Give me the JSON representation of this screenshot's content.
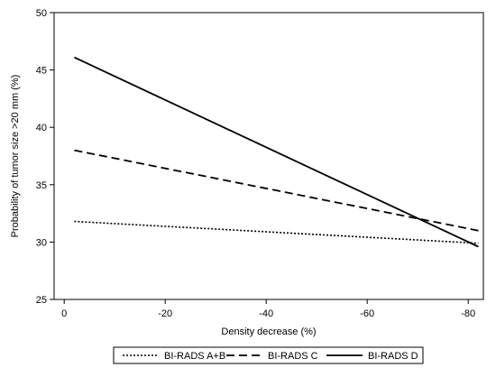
{
  "chart_data": {
    "type": "line",
    "xlabel": "Density decrease (%)",
    "ylabel": "Probability of tumor size >20 mm (%)",
    "xlim": [
      2,
      -83
    ],
    "ylim": [
      25,
      50
    ],
    "x_reversed": true,
    "xticks": [
      0,
      -20,
      -40,
      -60,
      -80
    ],
    "yticks": [
      25,
      30,
      35,
      40,
      45,
      50
    ],
    "xtick_labels": [
      "0",
      "-20",
      "-40",
      "-60",
      "-80"
    ],
    "ytick_labels": [
      "25",
      "30",
      "35",
      "40",
      "45",
      "50"
    ],
    "grid": false,
    "legend_position": "bottom",
    "series": [
      {
        "name": "BI-RADS A+B",
        "line_style": "dotted",
        "color": "#000000",
        "points": [
          [
            -2,
            31.8
          ],
          [
            -82,
            29.9
          ]
        ]
      },
      {
        "name": "BI-RADS C",
        "line_style": "dashed",
        "color": "#000000",
        "points": [
          [
            -2,
            38.0
          ],
          [
            -82,
            31.0
          ]
        ]
      },
      {
        "name": "BI-RADS D",
        "line_style": "solid",
        "color": "#000000",
        "points": [
          [
            -2,
            46.1
          ],
          [
            -82,
            29.6
          ]
        ]
      }
    ]
  }
}
